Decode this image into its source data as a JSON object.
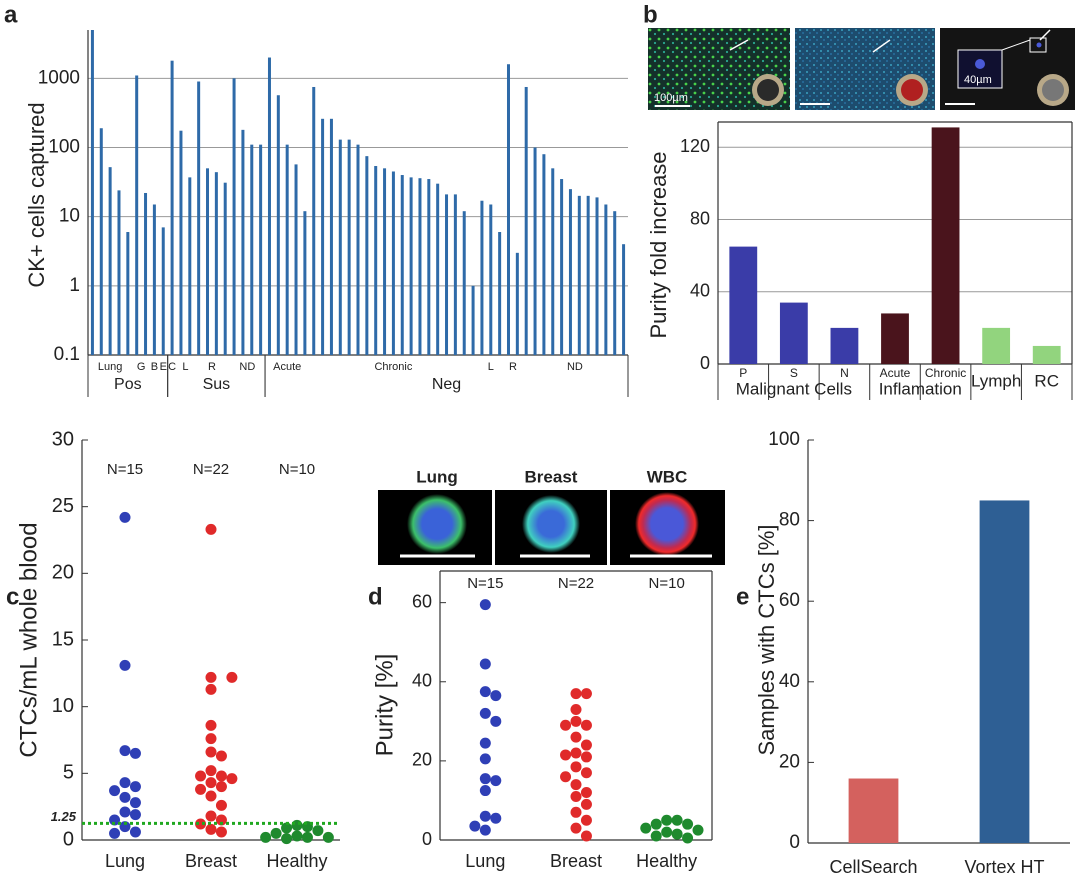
{
  "chart_data": [
    {
      "type": "bar",
      "panel": "a",
      "ylabel": "CK+ cells captured",
      "log": true,
      "ylim": [
        0.1,
        5000
      ],
      "yticks": [
        0.1,
        1,
        10,
        100,
        1000
      ],
      "grid": true,
      "color": "#2e6aa8",
      "values": [
        5000,
        190,
        52,
        24,
        6,
        1100,
        22,
        15,
        7,
        1800,
        175,
        37,
        900,
        50,
        44,
        31,
        1000,
        180,
        110,
        110,
        2000,
        570,
        110,
        57,
        12,
        750,
        260,
        260,
        130,
        130,
        110,
        75,
        54,
        50,
        45,
        40,
        37,
        36,
        35,
        30,
        21,
        21,
        12,
        1,
        17,
        15,
        6,
        1600,
        3,
        750,
        100,
        80,
        50,
        35,
        25,
        20,
        20,
        19,
        15,
        12,
        4
      ],
      "subgroups": [
        "Lung",
        "G",
        "B",
        "E",
        "C",
        "L",
        "R",
        "ND",
        "Acute",
        "Chronic",
        "L",
        "R",
        "ND"
      ],
      "groups": [
        "Pos",
        "Sus",
        "Neg"
      ]
    },
    {
      "type": "bar",
      "panel": "b",
      "ylabel": "Purity fold increase",
      "ylim": [
        0,
        134
      ],
      "yticks": [
        0,
        40,
        80,
        120
      ],
      "grid": true,
      "categories": [
        "P",
        "S",
        "N",
        "Acute",
        "Chronic",
        "Lymph",
        "RC"
      ],
      "values": [
        65,
        34,
        20,
        28,
        131,
        20,
        10
      ],
      "colors": [
        "#3a3ca8",
        "#3a3ca8",
        "#3a3ca8",
        "#4a141c",
        "#4a141c",
        "#92d47e",
        "#92d47e"
      ],
      "groups": [
        "Malignant Cells",
        "Inflamation"
      ],
      "scale_labels": [
        "100µm",
        "40µm"
      ]
    },
    {
      "type": "strip",
      "panel": "c",
      "ylabel": "CTCs/mL whole blood",
      "ylim": [
        0,
        30
      ],
      "yticks": [
        0,
        5,
        10,
        15,
        20,
        25,
        30
      ],
      "categories": [
        "Lung",
        "Breast",
        "Healthy"
      ],
      "series": [
        {
          "n_label": "N=15",
          "color": "#2f3fb6",
          "values": [
            24.2,
            13.1,
            6.7,
            6.5,
            4.3,
            4,
            3.7,
            3.2,
            2.8,
            2.1,
            1.9,
            1.5,
            1.0,
            0.6,
            0.5
          ]
        },
        {
          "n_label": "N=22",
          "color": "#e02a2a",
          "values": [
            23.3,
            12.2,
            12.2,
            11.3,
            8.6,
            7.6,
            6.6,
            6.3,
            5.2,
            4.8,
            4.8,
            4.6,
            4.3,
            4.0,
            3.8,
            3.3,
            2.6,
            1.8,
            1.5,
            1.2,
            0.8,
            0.6
          ]
        },
        {
          "n_label": "N=10",
          "color": "#1f8a2e",
          "values": [
            1.1,
            1.0,
            0.9,
            0.7,
            0.5,
            0.3,
            0.2,
            0.2,
            0.2,
            0.1
          ]
        }
      ],
      "threshold": 1.25,
      "threshold_color": "#1fa81f"
    },
    {
      "type": "strip",
      "panel": "d",
      "ylabel": "Purity [%]",
      "ylim": [
        0,
        68
      ],
      "yticks": [
        0,
        20,
        40,
        60
      ],
      "categories": [
        "Lung",
        "Breast",
        "Healthy"
      ],
      "series": [
        {
          "n_label": "N=15",
          "color": "#2f3fb6",
          "values": [
            59.5,
            44.5,
            37.5,
            36.5,
            32,
            30,
            24.5,
            20.5,
            15.5,
            15,
            12.5,
            6,
            5.5,
            3.5,
            2.5
          ]
        },
        {
          "n_label": "N=22",
          "color": "#e02a2a",
          "values": [
            37,
            37,
            33,
            30,
            29,
            29,
            26,
            24,
            22,
            21.5,
            21,
            18.5,
            17,
            16,
            14,
            12,
            11,
            9,
            7,
            5,
            3,
            1
          ]
        },
        {
          "n_label": "N=10",
          "color": "#1f8a2e",
          "values": [
            5,
            5,
            4,
            4,
            3,
            2.5,
            2,
            1.5,
            1,
            0.5
          ]
        }
      ],
      "image_titles": [
        "Lung",
        "Breast",
        "WBC"
      ]
    },
    {
      "type": "bar",
      "panel": "e",
      "ylabel": "Samples with CTCs [%]",
      "ylim": [
        0,
        100
      ],
      "yticks": [
        0,
        20,
        40,
        60,
        80,
        100
      ],
      "categories": [
        "CellSearch",
        "Vortex HT"
      ],
      "values": [
        16,
        85
      ],
      "colors": [
        "#d4615e",
        "#2e5f94"
      ]
    }
  ]
}
